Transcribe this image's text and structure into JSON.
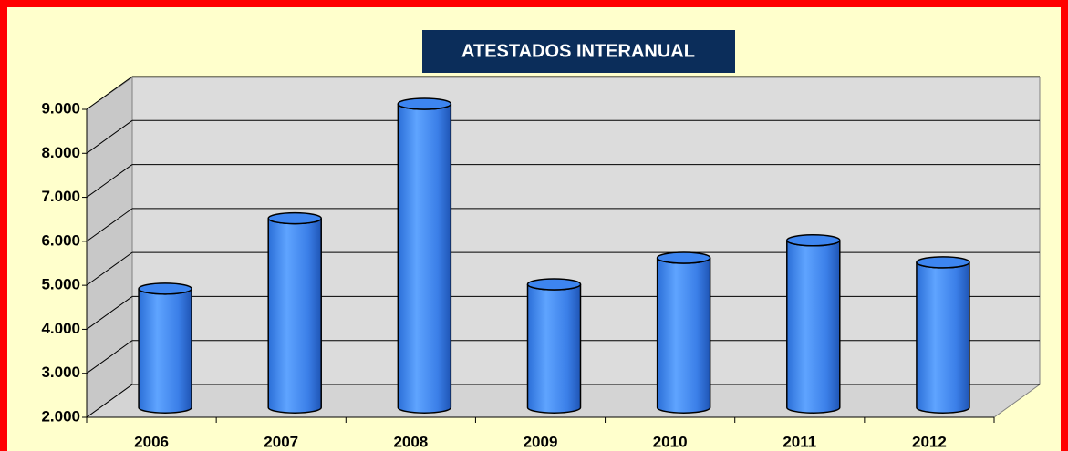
{
  "chart_data": {
    "type": "bar3d",
    "title": "ATESTADOS INTERANUAL",
    "categories": [
      "2006",
      "2007",
      "2008",
      "2009",
      "2010",
      "2011",
      "2012"
    ],
    "values": [
      4700,
      6300,
      8900,
      4800,
      5400,
      5800,
      5300
    ],
    "color": "#3d85f0",
    "ylim": [
      2000,
      9000
    ],
    "yticks": [
      {
        "value": 2000,
        "label": "2.000"
      },
      {
        "value": 3000,
        "label": "3.000"
      },
      {
        "value": 4000,
        "label": "4.000"
      },
      {
        "value": 5000,
        "label": "5.000"
      },
      {
        "value": 6000,
        "label": "6.000"
      },
      {
        "value": 7000,
        "label": "7.000"
      },
      {
        "value": 8000,
        "label": "8.000"
      },
      {
        "value": 9000,
        "label": "9.000"
      }
    ],
    "grid": true
  }
}
